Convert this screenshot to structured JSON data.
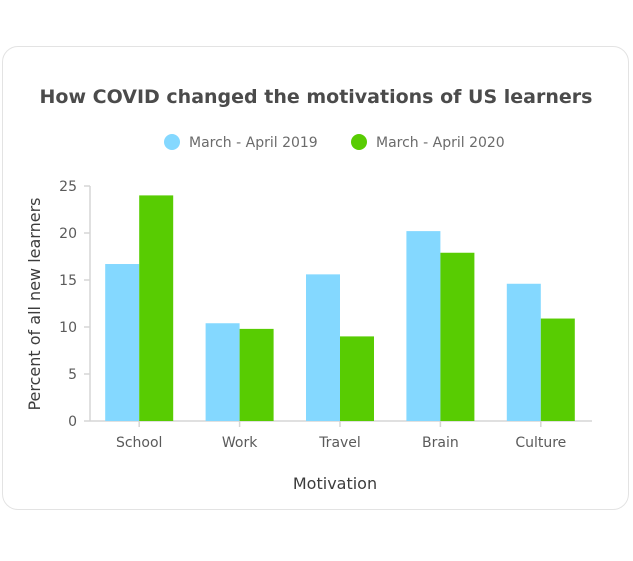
{
  "chart_data": {
    "type": "bar",
    "title": "How COVID changed the motivations of US learners",
    "xlabel": "Motivation",
    "ylabel": "Percent of all new learners",
    "categories": [
      "School",
      "Work",
      "Travel",
      "Brain",
      "Culture"
    ],
    "series": [
      {
        "name": "March - April 2019",
        "color": "#84d8ff",
        "values": [
          16.7,
          10.4,
          15.6,
          20.2,
          14.6
        ]
      },
      {
        "name": "March - April 2020",
        "color": "#58cc02",
        "values": [
          24.0,
          9.8,
          9.0,
          17.9,
          10.9
        ]
      }
    ],
    "ylim": [
      0,
      25
    ],
    "yticks": [
      0,
      5,
      10,
      15,
      20,
      25
    ],
    "legend_position": "top-center",
    "grid": false
  }
}
